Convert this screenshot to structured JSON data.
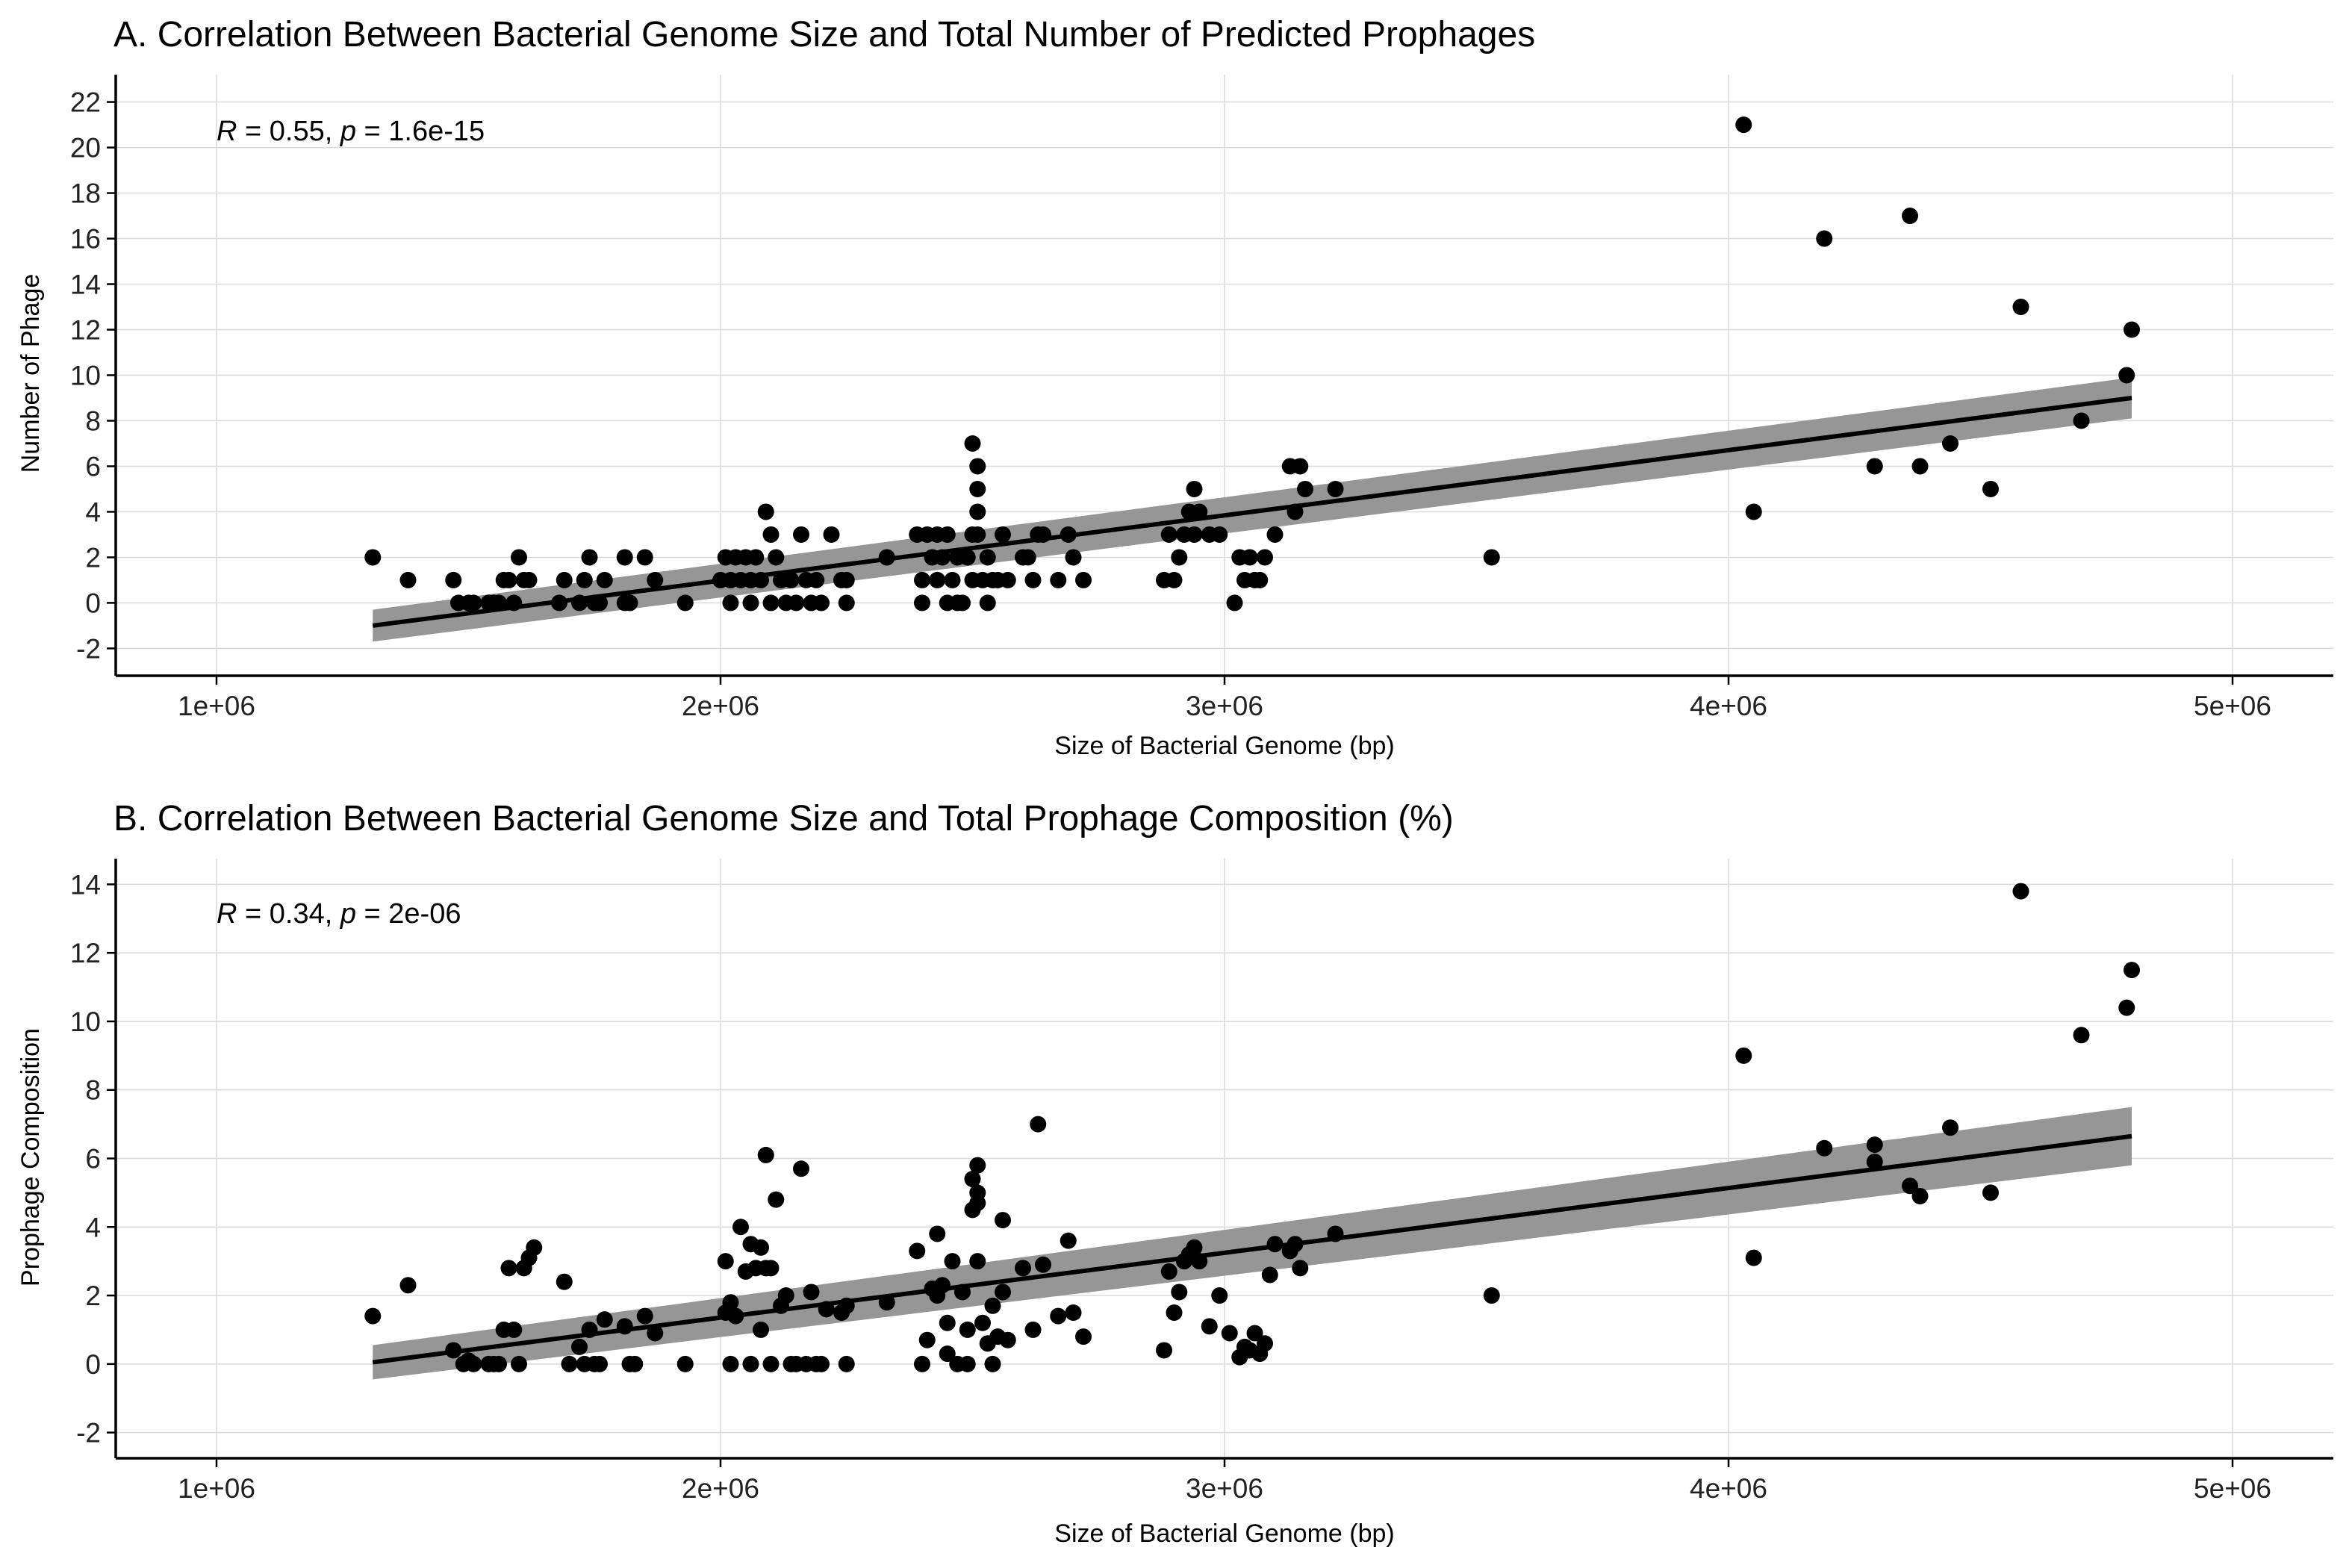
{
  "chart_data": [
    {
      "type": "scatter",
      "title": "A. Correlation Between Bacterial Genome Size and Total Number of Predicted Prophages",
      "xlabel": "Size of Bacterial Genome (bp)",
      "ylabel": "Number of Phage",
      "annotation": {
        "r_symbol": "R",
        "r_text": " = 0.55, ",
        "p_symbol": "p",
        "p_text": " = 1.6e-15"
      },
      "xlim": [
        800000,
        5200000
      ],
      "ylim": [
        -3.2,
        23.2
      ],
      "x_ticks": [
        1000000,
        2000000,
        3000000,
        4000000,
        5000000
      ],
      "x_tick_labels": [
        "1e+06",
        "2e+06",
        "3e+06",
        "4e+06",
        "5e+06"
      ],
      "y_ticks": [
        -2,
        0,
        2,
        4,
        6,
        8,
        10,
        12,
        14,
        16,
        18,
        20,
        22
      ],
      "y_tick_labels": [
        "-2",
        "0",
        "2",
        "4",
        "6",
        "8",
        "10",
        "12",
        "14",
        "16",
        "18",
        "20",
        "22"
      ],
      "grid": true,
      "fit": {
        "x": [
          1310000,
          4800000
        ],
        "y": [
          -1.0,
          9.0
        ],
        "ci_low": [
          -1.7,
          8.1
        ],
        "ci_high": [
          -0.3,
          9.9
        ]
      },
      "points": [
        [
          1310000,
          2
        ],
        [
          1380000,
          1
        ],
        [
          1470000,
          1
        ],
        [
          1480000,
          0
        ],
        [
          1500000,
          0
        ],
        [
          1510000,
          0
        ],
        [
          1540000,
          0
        ],
        [
          1550000,
          0
        ],
        [
          1560000,
          0
        ],
        [
          1570000,
          1
        ],
        [
          1580000,
          1
        ],
        [
          1590000,
          0
        ],
        [
          1600000,
          2
        ],
        [
          1610000,
          1
        ],
        [
          1620000,
          1
        ],
        [
          1680000,
          0
        ],
        [
          1690000,
          1
        ],
        [
          1720000,
          0
        ],
        [
          1730000,
          1
        ],
        [
          1740000,
          2
        ],
        [
          1750000,
          0
        ],
        [
          1760000,
          0
        ],
        [
          1770000,
          1
        ],
        [
          1810000,
          0
        ],
        [
          1820000,
          0
        ],
        [
          1810000,
          2
        ],
        [
          1850000,
          2
        ],
        [
          1870000,
          1
        ],
        [
          1930000,
          0
        ],
        [
          2000000,
          1
        ],
        [
          2010000,
          2
        ],
        [
          2020000,
          1
        ],
        [
          2030000,
          2
        ],
        [
          2040000,
          1
        ],
        [
          2050000,
          2
        ],
        [
          2060000,
          1
        ],
        [
          2070000,
          2
        ],
        [
          2080000,
          1
        ],
        [
          2090000,
          4
        ],
        [
          2100000,
          3
        ],
        [
          2110000,
          2
        ],
        [
          2120000,
          1
        ],
        [
          2020000,
          0
        ],
        [
          2060000,
          0
        ],
        [
          2100000,
          0
        ],
        [
          2130000,
          0
        ],
        [
          2140000,
          1
        ],
        [
          2150000,
          0
        ],
        [
          2160000,
          3
        ],
        [
          2170000,
          1
        ],
        [
          2180000,
          0
        ],
        [
          2190000,
          1
        ],
        [
          2200000,
          0
        ],
        [
          2220000,
          3
        ],
        [
          2240000,
          1
        ],
        [
          2250000,
          1
        ],
        [
          2250000,
          0
        ],
        [
          2330000,
          2
        ],
        [
          2390000,
          3
        ],
        [
          2400000,
          0
        ],
        [
          2400000,
          1
        ],
        [
          2410000,
          3
        ],
        [
          2420000,
          2
        ],
        [
          2430000,
          3
        ],
        [
          2430000,
          1
        ],
        [
          2440000,
          2
        ],
        [
          2450000,
          3
        ],
        [
          2450000,
          0
        ],
        [
          2460000,
          1
        ],
        [
          2470000,
          2
        ],
        [
          2470000,
          0
        ],
        [
          2480000,
          0
        ],
        [
          2490000,
          2
        ],
        [
          2500000,
          1
        ],
        [
          2500000,
          7
        ],
        [
          2510000,
          6
        ],
        [
          2510000,
          5
        ],
        [
          2510000,
          4
        ],
        [
          2500000,
          3
        ],
        [
          2510000,
          3
        ],
        [
          2520000,
          1
        ],
        [
          2530000,
          2
        ],
        [
          2530000,
          0
        ],
        [
          2540000,
          1
        ],
        [
          2550000,
          1
        ],
        [
          2560000,
          3
        ],
        [
          2570000,
          1
        ],
        [
          2600000,
          2
        ],
        [
          2610000,
          2
        ],
        [
          2620000,
          1
        ],
        [
          2630000,
          3
        ],
        [
          2640000,
          3
        ],
        [
          2670000,
          1
        ],
        [
          2690000,
          3
        ],
        [
          2700000,
          2
        ],
        [
          2720000,
          1
        ],
        [
          2880000,
          1
        ],
        [
          2890000,
          3
        ],
        [
          2900000,
          1
        ],
        [
          2910000,
          2
        ],
        [
          2920000,
          3
        ],
        [
          2930000,
          4
        ],
        [
          2940000,
          5
        ],
        [
          2950000,
          4
        ],
        [
          2940000,
          3
        ],
        [
          2970000,
          3
        ],
        [
          2990000,
          3
        ],
        [
          3020000,
          0
        ],
        [
          3030000,
          2
        ],
        [
          3040000,
          1
        ],
        [
          3050000,
          2
        ],
        [
          3060000,
          1
        ],
        [
          3070000,
          1
        ],
        [
          3080000,
          2
        ],
        [
          3100000,
          3
        ],
        [
          3130000,
          6
        ],
        [
          3140000,
          4
        ],
        [
          3150000,
          6
        ],
        [
          3160000,
          5
        ],
        [
          3220000,
          5
        ],
        [
          3530000,
          2
        ],
        [
          4030000,
          21
        ],
        [
          4050000,
          4
        ],
        [
          4190000,
          16
        ],
        [
          4290000,
          6
        ],
        [
          4360000,
          17
        ],
        [
          4380000,
          6
        ],
        [
          4440000,
          7
        ],
        [
          4520000,
          5
        ],
        [
          4580000,
          13
        ],
        [
          4700000,
          8
        ],
        [
          4790000,
          10
        ],
        [
          4800000,
          12
        ]
      ]
    },
    {
      "type": "scatter",
      "title": "B. Correlation Between Bacterial Genome Size and Total Prophage Composition (%)",
      "xlabel": "Size of Bacterial Genome (bp)",
      "ylabel": "Prophage Composition",
      "annotation": {
        "r_symbol": "R",
        "r_text": " = 0.34, ",
        "p_symbol": "p",
        "p_text": " = 2e-06"
      },
      "xlim": [
        800000,
        5200000
      ],
      "ylim": [
        -2.75,
        14.75
      ],
      "x_ticks": [
        1000000,
        2000000,
        3000000,
        4000000,
        5000000
      ],
      "x_tick_labels": [
        "1e+06",
        "2e+06",
        "3e+06",
        "4e+06",
        "5e+06"
      ],
      "y_ticks": [
        -2,
        0,
        2,
        4,
        6,
        8,
        10,
        12,
        14
      ],
      "y_tick_labels": [
        "-2",
        "0",
        "2",
        "4",
        "6",
        "8",
        "10",
        "12",
        "14"
      ],
      "grid": true,
      "fit": {
        "x": [
          1310000,
          4800000
        ],
        "y": [
          0.05,
          6.65
        ],
        "ci_low": [
          -0.45,
          5.8
        ],
        "ci_high": [
          0.55,
          7.5
        ]
      },
      "points": [
        [
          1310000,
          1.4
        ],
        [
          1380000,
          2.3
        ],
        [
          1470000,
          0.4
        ],
        [
          1490000,
          0.0
        ],
        [
          1500000,
          0.1
        ],
        [
          1510000,
          0.0
        ],
        [
          1540000,
          0.0
        ],
        [
          1550000,
          0.0
        ],
        [
          1560000,
          0.0
        ],
        [
          1570000,
          1.0
        ],
        [
          1580000,
          2.8
        ],
        [
          1590000,
          1.0
        ],
        [
          1600000,
          0.0
        ],
        [
          1610000,
          2.8
        ],
        [
          1620000,
          3.1
        ],
        [
          1630000,
          3.4
        ],
        [
          1690000,
          2.4
        ],
        [
          1700000,
          0.0
        ],
        [
          1720000,
          0.5
        ],
        [
          1730000,
          0.0
        ],
        [
          1740000,
          1.0
        ],
        [
          1750000,
          0.0
        ],
        [
          1760000,
          0.0
        ],
        [
          1770000,
          1.3
        ],
        [
          1810000,
          1.1
        ],
        [
          1820000,
          0.0
        ],
        [
          1830000,
          0.0
        ],
        [
          1850000,
          1.4
        ],
        [
          1870000,
          0.9
        ],
        [
          1930000,
          0.0
        ],
        [
          2010000,
          3.0
        ],
        [
          2010000,
          1.5
        ],
        [
          2020000,
          1.8
        ],
        [
          2030000,
          1.4
        ],
        [
          2040000,
          4.0
        ],
        [
          2050000,
          2.7
        ],
        [
          2060000,
          3.5
        ],
        [
          2070000,
          2.8
        ],
        [
          2080000,
          3.4
        ],
        [
          2090000,
          2.8
        ],
        [
          2100000,
          2.8
        ],
        [
          2020000,
          0.0
        ],
        [
          2060000,
          0.0
        ],
        [
          2080000,
          1.0
        ],
        [
          2090000,
          6.1
        ],
        [
          2100000,
          0.0
        ],
        [
          2110000,
          4.8
        ],
        [
          2120000,
          1.7
        ],
        [
          2130000,
          2.0
        ],
        [
          2140000,
          0.0
        ],
        [
          2150000,
          0.0
        ],
        [
          2160000,
          5.7
        ],
        [
          2170000,
          0.0
        ],
        [
          2180000,
          2.1
        ],
        [
          2190000,
          0.0
        ],
        [
          2200000,
          0.0
        ],
        [
          2210000,
          1.6
        ],
        [
          2240000,
          1.5
        ],
        [
          2250000,
          0.0
        ],
        [
          2250000,
          1.7
        ],
        [
          2330000,
          1.8
        ],
        [
          2390000,
          3.3
        ],
        [
          2400000,
          0.0
        ],
        [
          2410000,
          0.7
        ],
        [
          2420000,
          2.2
        ],
        [
          2430000,
          3.8
        ],
        [
          2430000,
          2.0
        ],
        [
          2440000,
          2.3
        ],
        [
          2450000,
          1.2
        ],
        [
          2450000,
          0.3
        ],
        [
          2460000,
          3.0
        ],
        [
          2470000,
          0.0
        ],
        [
          2480000,
          2.1
        ],
        [
          2490000,
          0.0
        ],
        [
          2490000,
          1.0
        ],
        [
          2500000,
          4.5
        ],
        [
          2510000,
          5.0
        ],
        [
          2510000,
          5.8
        ],
        [
          2500000,
          5.4
        ],
        [
          2510000,
          4.7
        ],
        [
          2510000,
          3.0
        ],
        [
          2520000,
          1.2
        ],
        [
          2530000,
          0.6
        ],
        [
          2540000,
          1.7
        ],
        [
          2540000,
          0.0
        ],
        [
          2550000,
          0.8
        ],
        [
          2560000,
          2.1
        ],
        [
          2560000,
          4.2
        ],
        [
          2570000,
          0.7
        ],
        [
          2600000,
          2.8
        ],
        [
          2620000,
          1.0
        ],
        [
          2630000,
          7.0
        ],
        [
          2640000,
          2.9
        ],
        [
          2670000,
          1.4
        ],
        [
          2690000,
          3.6
        ],
        [
          2700000,
          1.5
        ],
        [
          2720000,
          0.8
        ],
        [
          2880000,
          0.4
        ],
        [
          2890000,
          2.7
        ],
        [
          2900000,
          1.5
        ],
        [
          2910000,
          2.1
        ],
        [
          2920000,
          3.0
        ],
        [
          2930000,
          3.2
        ],
        [
          2940000,
          3.4
        ],
        [
          2950000,
          3.0
        ],
        [
          2970000,
          1.1
        ],
        [
          2990000,
          2.0
        ],
        [
          3010000,
          0.9
        ],
        [
          3030000,
          0.2
        ],
        [
          3040000,
          0.5
        ],
        [
          3050000,
          0.4
        ],
        [
          3060000,
          0.9
        ],
        [
          3070000,
          0.3
        ],
        [
          3080000,
          0.6
        ],
        [
          3090000,
          2.6
        ],
        [
          3100000,
          3.5
        ],
        [
          3130000,
          3.3
        ],
        [
          3140000,
          3.5
        ],
        [
          3150000,
          2.8
        ],
        [
          3220000,
          3.8
        ],
        [
          3530000,
          2.0
        ],
        [
          4030000,
          9.0
        ],
        [
          4050000,
          3.1
        ],
        [
          4190000,
          6.3
        ],
        [
          4290000,
          5.9
        ],
        [
          4290000,
          6.4
        ],
        [
          4360000,
          5.2
        ],
        [
          4380000,
          4.9
        ],
        [
          4440000,
          6.9
        ],
        [
          4520000,
          5.0
        ],
        [
          4580000,
          13.8
        ],
        [
          4700000,
          9.6
        ],
        [
          4790000,
          10.4
        ],
        [
          4800000,
          11.5
        ]
      ]
    }
  ]
}
